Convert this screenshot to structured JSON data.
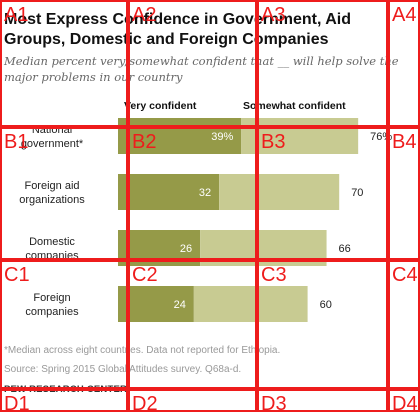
{
  "chart_data": {
    "type": "bar",
    "stacked": true,
    "orientation": "horizontal",
    "title": "Most Express Confidence in Government, Aid Groups, Domestic and Foreign Companies",
    "subtitle": "Median percent very/somewhat confident that __ will help solve the major problems in our country",
    "categories": [
      "National government*",
      "Foreign aid organizations",
      "Domestic companies",
      "Foreign companies"
    ],
    "series": [
      {
        "name": "Very confident",
        "color": "#959a48",
        "values": [
          39,
          32,
          26,
          24
        ]
      },
      {
        "name": "Somewhat confident",
        "color": "#c8cb92",
        "values": [
          37,
          38,
          40,
          36
        ]
      }
    ],
    "inner_labels": [
      "39%",
      "32",
      "26",
      "24"
    ],
    "total_labels": [
      "76%",
      "70",
      "66",
      "60"
    ],
    "xlim": [
      0,
      100
    ],
    "legend": "top",
    "grid": false,
    "note": "*Median across eight countries. Data not reported for Ethiopia.",
    "source": "Source: Spring 2015 Global Attitudes survey. Q68a-d.",
    "brand": "PEW RESEARCH CENTER"
  },
  "overlay": {
    "labels": [
      "A1",
      "A2",
      "A3",
      "A4",
      "B1",
      "B2",
      "B3",
      "B4",
      "C1",
      "C2",
      "C3",
      "C4",
      "D1",
      "D2",
      "D3",
      "D4"
    ],
    "color": "#ee1c1c"
  }
}
